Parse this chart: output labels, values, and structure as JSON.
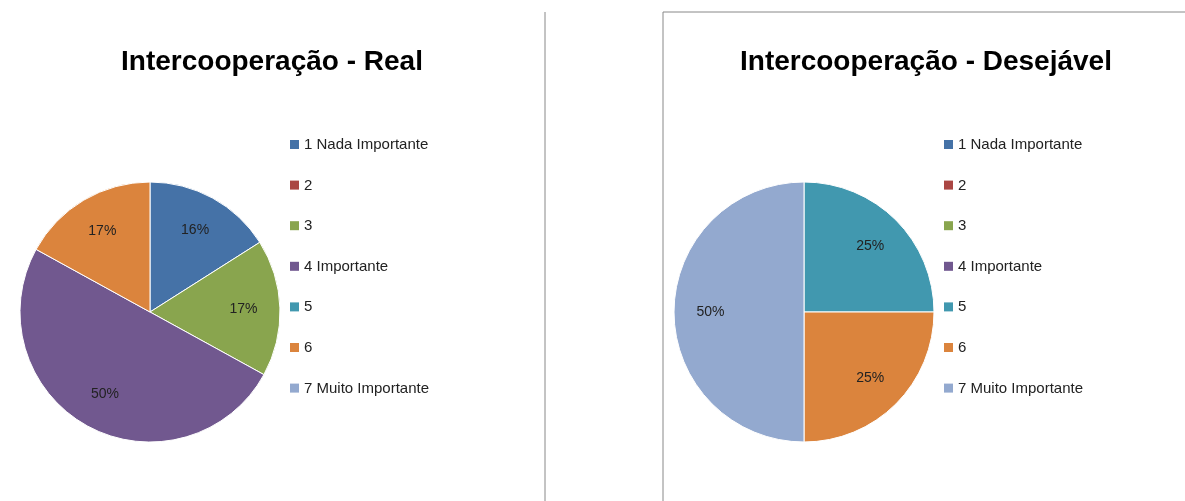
{
  "chart_data": [
    {
      "type": "pie",
      "title": "Intercooperação - Real",
      "categories": [
        "1 Nada Importante",
        "2",
        "3",
        "4 Importante",
        "5",
        "6",
        "7 Muito Importante"
      ],
      "values": [
        16,
        0,
        17,
        50,
        0,
        17,
        0
      ],
      "value_labels": [
        "16%",
        null,
        "17%",
        "50%",
        null,
        "17%",
        null
      ],
      "colors": [
        "#4572a7",
        "#aa4643",
        "#89a54e",
        "#71588f",
        "#4198af",
        "#db843d",
        "#93a9cf"
      ],
      "data_labels": false,
      "legend": "right"
    },
    {
      "type": "pie",
      "title": "Intercooperação - Desejável",
      "categories": [
        "1 Nada Importante",
        "2",
        "3",
        "4 Importante",
        "5",
        "6",
        "7 Muito Importante"
      ],
      "values": [
        0,
        0,
        0,
        0,
        25,
        25,
        50
      ],
      "value_labels": [
        null,
        null,
        null,
        null,
        "25%",
        "25%",
        "50%"
      ],
      "colors": [
        "#4572a7",
        "#aa4643",
        "#89a54e",
        "#71588f",
        "#4198af",
        "#db843d",
        "#93a9cf"
      ],
      "legend": "right"
    }
  ]
}
